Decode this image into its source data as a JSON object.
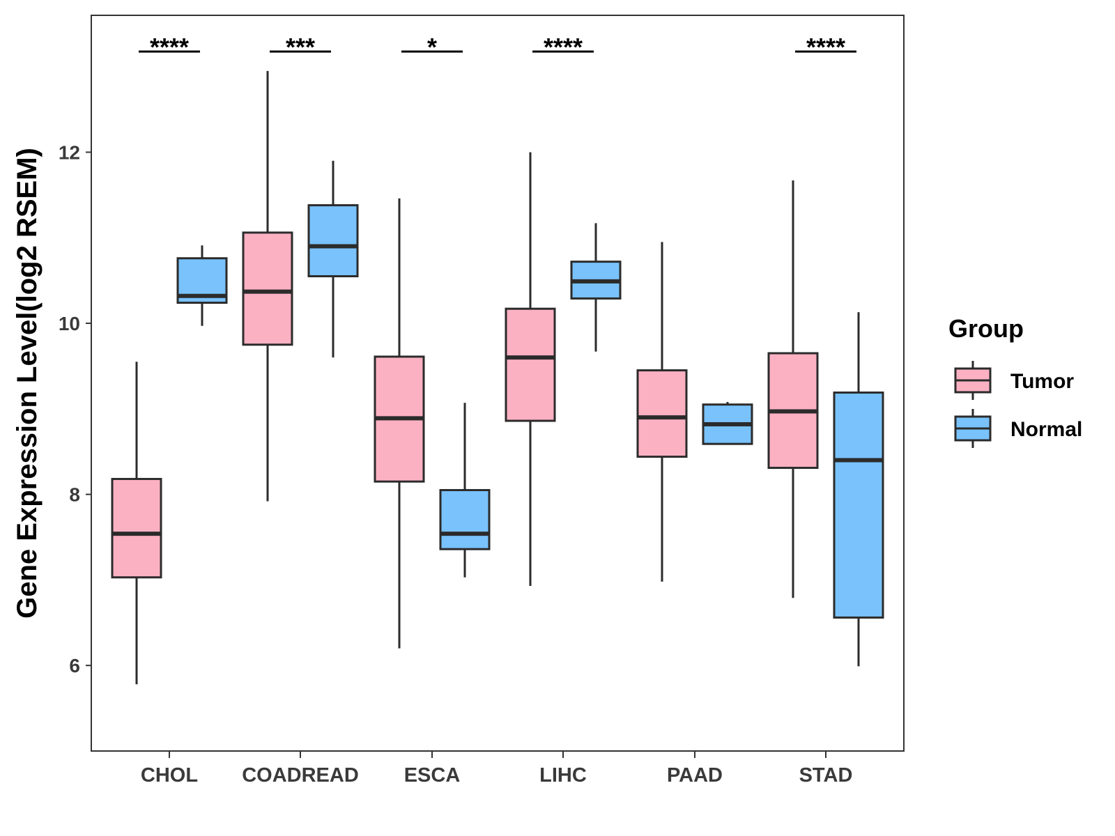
{
  "chart_data": {
    "type": "boxplot",
    "title": "",
    "xlabel": "",
    "ylabel": "Gene Expression Level(log2 RSEM)",
    "ylim": [
      5.0,
      13.6
    ],
    "yticks": [
      6,
      8,
      10,
      12
    ],
    "ytick_labels": [
      "6",
      "8",
      "10",
      "12"
    ],
    "categories": [
      "CHOL",
      "COADREAD",
      "ESCA",
      "LIHC",
      "PAAD",
      "STAD"
    ],
    "legend": {
      "title": "Group",
      "position": "right",
      "entries": [
        "Tumor",
        "Normal"
      ]
    },
    "series": [
      {
        "name": "Tumor",
        "color": "#FCB1C3",
        "boxes": [
          {
            "min": 5.78,
            "q1": 7.03,
            "median": 7.54,
            "q3": 8.18,
            "max": 9.55
          },
          {
            "min": 7.92,
            "q1": 9.75,
            "median": 10.37,
            "q3": 11.06,
            "max": 12.95
          },
          {
            "min": 6.2,
            "q1": 8.15,
            "median": 8.89,
            "q3": 9.61,
            "max": 11.46
          },
          {
            "min": 6.93,
            "q1": 8.86,
            "median": 9.6,
            "q3": 10.17,
            "max": 12.0
          },
          {
            "min": 6.98,
            "q1": 8.44,
            "median": 8.9,
            "q3": 9.45,
            "max": 10.95
          },
          {
            "min": 6.79,
            "q1": 8.31,
            "median": 8.97,
            "q3": 9.65,
            "max": 11.67
          }
        ]
      },
      {
        "name": "Normal",
        "color": "#79C2FB",
        "boxes": [
          {
            "min": 9.97,
            "q1": 10.24,
            "median": 10.32,
            "q3": 10.76,
            "max": 10.91
          },
          {
            "min": 9.6,
            "q1": 10.55,
            "median": 10.9,
            "q3": 11.38,
            "max": 11.9
          },
          {
            "min": 7.03,
            "q1": 7.36,
            "median": 7.54,
            "q3": 8.05,
            "max": 9.07
          },
          {
            "min": 9.67,
            "q1": 10.29,
            "median": 10.49,
            "q3": 10.72,
            "max": 11.17
          },
          {
            "min": 8.59,
            "q1": 8.59,
            "median": 8.82,
            "q3": 9.05,
            "max": 9.08
          },
          {
            "min": 5.99,
            "q1": 6.56,
            "median": 8.4,
            "q3": 9.19,
            "max": 10.13
          }
        ]
      }
    ],
    "significance": [
      "****",
      "***",
      "*",
      "****",
      "",
      "****"
    ]
  }
}
